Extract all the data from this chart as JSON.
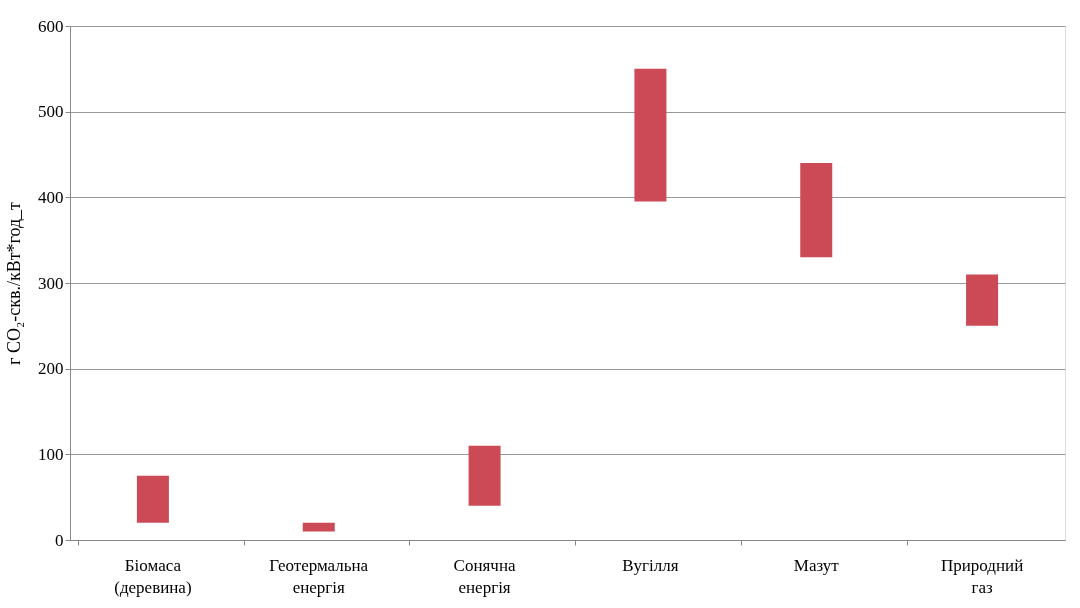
{
  "chart_data": {
    "type": "bar",
    "ylabel": "г CO₂-скв./кВт*год_т",
    "categories": [
      "Біомаса\n(деревина)",
      "Геотермальна\nенергія",
      "Сонячна\nенергія",
      "Вугілля",
      "Мазут",
      "Природний\nгаз"
    ],
    "values": [
      55,
      10,
      70,
      155,
      110,
      60
    ],
    "base": [
      20,
      10,
      40,
      395,
      330,
      250
    ],
    "color": "#cc4a55",
    "ylim": [
      0,
      600
    ],
    "yticks": [
      0,
      100,
      200,
      300,
      400,
      500,
      600
    ],
    "grid": "y"
  }
}
